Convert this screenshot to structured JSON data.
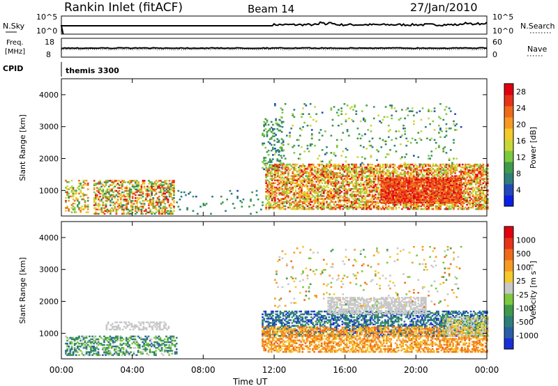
{
  "header": {
    "station": "Rankin Inlet (fitACF)",
    "beam": "Beam 14",
    "date": "27/Jan/2010"
  },
  "nsky_panel": {
    "left_label": "N.Sky",
    "right_label": "N.Search",
    "tick_top": "10^5",
    "tick_bottom": "10^0",
    "right_tick_top": "10^5",
    "right_tick_bottom": "10^0"
  },
  "freq_panel": {
    "left_label_line1": "Freq.",
    "left_label_line2": "[MHz]",
    "tick_top": "18",
    "tick_bottom": "8",
    "right_label": "Nave",
    "right_tick_top": "60",
    "right_tick_bottom": "0"
  },
  "cpid_panel": {
    "left_label": "CPID",
    "program": "themis 3300"
  },
  "chart_data": [
    {
      "type": "heatmap",
      "name": "power",
      "ylabel": "Slant Range [km]",
      "yticks": [
        "1000",
        "2000",
        "3000",
        "4000"
      ],
      "ylim": [
        200,
        4500
      ],
      "xlim_hours": [
        0,
        24
      ],
      "colorbar": {
        "label": "Power [dB]",
        "ticks": [
          "4",
          "8",
          "12",
          "16",
          "20",
          "24",
          "28"
        ],
        "range": [
          0,
          30
        ],
        "colors": [
          "#0a1fe6",
          "#2448b8",
          "#2e7f7a",
          "#3f9a4a",
          "#7cc940",
          "#c9d63a",
          "#f4c92a",
          "#f59a24",
          "#f06a1c",
          "#e8321a",
          "#e00010"
        ]
      },
      "regions": [
        {
          "t0": 0.2,
          "t1": 1.5,
          "r0": 300,
          "r1": 1300,
          "v0": 8,
          "v1": 26,
          "d": 0.35
        },
        {
          "t0": 1.8,
          "t1": 6.3,
          "r0": 250,
          "r1": 1300,
          "v0": 6,
          "v1": 30,
          "d": 0.5
        },
        {
          "t0": 6.3,
          "t1": 11.3,
          "r0": 250,
          "r1": 1000,
          "v0": 4,
          "v1": 10,
          "d": 0.04
        },
        {
          "t0": 11.3,
          "t1": 12.5,
          "r0": 1600,
          "r1": 3300,
          "v0": 4,
          "v1": 12,
          "d": 0.25
        },
        {
          "t0": 11.5,
          "t1": 24.0,
          "r0": 400,
          "r1": 1800,
          "v0": 10,
          "v1": 30,
          "d": 0.6
        },
        {
          "t0": 12.0,
          "t1": 22.5,
          "r0": 1800,
          "r1": 3700,
          "v0": 4,
          "v1": 16,
          "d": 0.06
        },
        {
          "t0": 18.0,
          "t1": 22.5,
          "r0": 600,
          "r1": 1400,
          "v0": 22,
          "v1": 30,
          "d": 0.8
        }
      ]
    },
    {
      "type": "heatmap",
      "name": "velocity",
      "ylabel": "Slant Range [km]",
      "xlabel": "Time UT",
      "xticks": [
        "00:00",
        "04:00",
        "08:00",
        "12:00",
        "16:00",
        "20:00",
        "00:00"
      ],
      "yticks": [
        "1000",
        "2000",
        "3000",
        "4000"
      ],
      "ylim": [
        200,
        4500
      ],
      "xlim_hours": [
        0,
        24
      ],
      "colorbar": {
        "label": "Velocity [m s⁻¹]",
        "ticks": [
          "1000",
          "500",
          "100",
          "25",
          "-25",
          "-100",
          "-500",
          "-1000"
        ],
        "colors": [
          "#1a2fd6",
          "#2a5fa8",
          "#2e7f7a",
          "#3f9a4a",
          "#7cc940",
          "#c8c8c8",
          "#f4c92a",
          "#f59a24",
          "#f06a1c",
          "#e8321a",
          "#e00010"
        ]
      },
      "regions": [
        {
          "t0": 0.2,
          "t1": 6.5,
          "r0": 300,
          "r1": 900,
          "v0": 1,
          "v1": 5,
          "d": 0.45
        },
        {
          "t0": 2.5,
          "t1": 6.0,
          "r0": 1100,
          "r1": 1350,
          "v0": 5,
          "v1": 5,
          "d": 0.4
        },
        {
          "t0": 11.3,
          "t1": 24.0,
          "r0": 900,
          "r1": 1700,
          "v0": 0,
          "v1": 3,
          "d": 0.5
        },
        {
          "t0": 11.3,
          "t1": 24.0,
          "r0": 400,
          "r1": 1200,
          "v0": 6,
          "v1": 8,
          "d": 0.55
        },
        {
          "t0": 15.0,
          "t1": 20.5,
          "r0": 1600,
          "r1": 2100,
          "v0": 5,
          "v1": 5,
          "d": 0.6
        },
        {
          "t0": 12.0,
          "t1": 22.5,
          "r0": 1800,
          "r1": 3700,
          "v0": 3,
          "v1": 8,
          "d": 0.05
        },
        {
          "t0": 21.5,
          "t1": 24.0,
          "r0": 900,
          "r1": 1500,
          "v0": 4,
          "v1": 6,
          "d": 0.5
        }
      ]
    }
  ]
}
